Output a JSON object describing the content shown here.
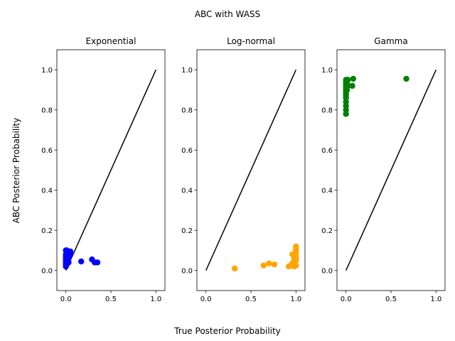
{
  "figure": {
    "title": "ABC with WASS",
    "xlabel": "True Posterior Probability",
    "ylabel": "ABC Posterior Probability"
  },
  "chart_data": [
    {
      "type": "scatter",
      "title": "Exponential",
      "color": "#0000ff",
      "xlim": [
        -0.1,
        1.1
      ],
      "ylim": [
        -0.1,
        1.1
      ],
      "xticks": [
        "0.0",
        "0.5",
        "1.0"
      ],
      "xtick_values": [
        0.0,
        0.5,
        1.0
      ],
      "yticks": [
        "0.0",
        "0.2",
        "0.4",
        "0.6",
        "0.8",
        "1.0"
      ],
      "ytick_values": [
        0.0,
        0.2,
        0.4,
        0.6,
        0.8,
        1.0
      ],
      "reference_line": {
        "x": [
          0,
          1
        ],
        "y": [
          0,
          1
        ],
        "color": "#000000"
      },
      "x": [
        0.0,
        0.0,
        0.0,
        0.0,
        0.0,
        0.0,
        0.01,
        0.01,
        0.01,
        0.01,
        0.01,
        0.02,
        0.02,
        0.02,
        0.03,
        0.03,
        0.04,
        0.05,
        0.05,
        0.0,
        0.01,
        0.02,
        0.0,
        0.01,
        0.03,
        0.17,
        0.29,
        0.32,
        0.35
      ],
      "y": [
        0.02,
        0.03,
        0.04,
        0.05,
        0.06,
        0.08,
        0.04,
        0.05,
        0.07,
        0.09,
        0.1,
        0.05,
        0.07,
        0.09,
        0.06,
        0.08,
        0.07,
        0.08,
        0.095,
        0.1,
        0.085,
        0.06,
        0.07,
        0.03,
        0.04,
        0.045,
        0.055,
        0.04,
        0.04
      ]
    },
    {
      "type": "scatter",
      "title": "Log-normal",
      "color": "#ffa500",
      "xlim": [
        -0.1,
        1.1
      ],
      "ylim": [
        -0.1,
        1.1
      ],
      "xticks": [
        "0.0",
        "0.5",
        "1.0"
      ],
      "xtick_values": [
        0.0,
        0.5,
        1.0
      ],
      "yticks": [
        "0.0",
        "0.2",
        "0.4",
        "0.6",
        "0.8",
        "1.0"
      ],
      "ytick_values": [
        0.0,
        0.2,
        0.4,
        0.6,
        0.8,
        1.0
      ],
      "reference_line": {
        "x": [
          0,
          1
        ],
        "y": [
          0,
          1
        ],
        "color": "#000000"
      },
      "x": [
        0.32,
        0.64,
        0.7,
        0.76,
        0.92,
        0.95,
        0.96,
        0.97,
        0.98,
        0.99,
        1.0,
        1.0,
        1.0,
        1.0,
        1.0,
        1.0,
        1.0,
        0.99,
        0.98,
        0.97,
        0.96,
        0.99,
        1.0
      ],
      "y": [
        0.01,
        0.025,
        0.035,
        0.03,
        0.02,
        0.03,
        0.08,
        0.04,
        0.02,
        0.03,
        0.05,
        0.06,
        0.07,
        0.09,
        0.1,
        0.11,
        0.12,
        0.08,
        0.06,
        0.03,
        0.025,
        0.04,
        0.025
      ]
    },
    {
      "type": "scatter",
      "title": "Gamma",
      "color": "#008000",
      "xlim": [
        -0.1,
        1.1
      ],
      "ylim": [
        -0.1,
        1.1
      ],
      "xticks": [
        "0.0",
        "0.5",
        "1.0"
      ],
      "xtick_values": [
        0.0,
        0.5,
        1.0
      ],
      "yticks": [
        "0.0",
        "0.2",
        "0.4",
        "0.6",
        "0.8",
        "1.0"
      ],
      "ytick_values": [
        0.0,
        0.2,
        0.4,
        0.6,
        0.8,
        1.0
      ],
      "reference_line": {
        "x": [
          0,
          1
        ],
        "y": [
          0,
          1
        ],
        "color": "#000000"
      },
      "x": [
        0.0,
        0.0,
        0.0,
        0.0,
        0.0,
        0.0,
        0.0,
        0.0,
        0.0,
        0.0,
        0.0,
        0.0,
        0.0,
        0.0,
        0.01,
        0.01,
        0.01,
        0.02,
        0.02,
        0.07,
        0.08,
        0.67
      ],
      "y": [
        0.78,
        0.8,
        0.82,
        0.84,
        0.86,
        0.87,
        0.88,
        0.89,
        0.9,
        0.91,
        0.92,
        0.93,
        0.94,
        0.95,
        0.9,
        0.93,
        0.94,
        0.95,
        0.92,
        0.92,
        0.955,
        0.955
      ]
    }
  ]
}
